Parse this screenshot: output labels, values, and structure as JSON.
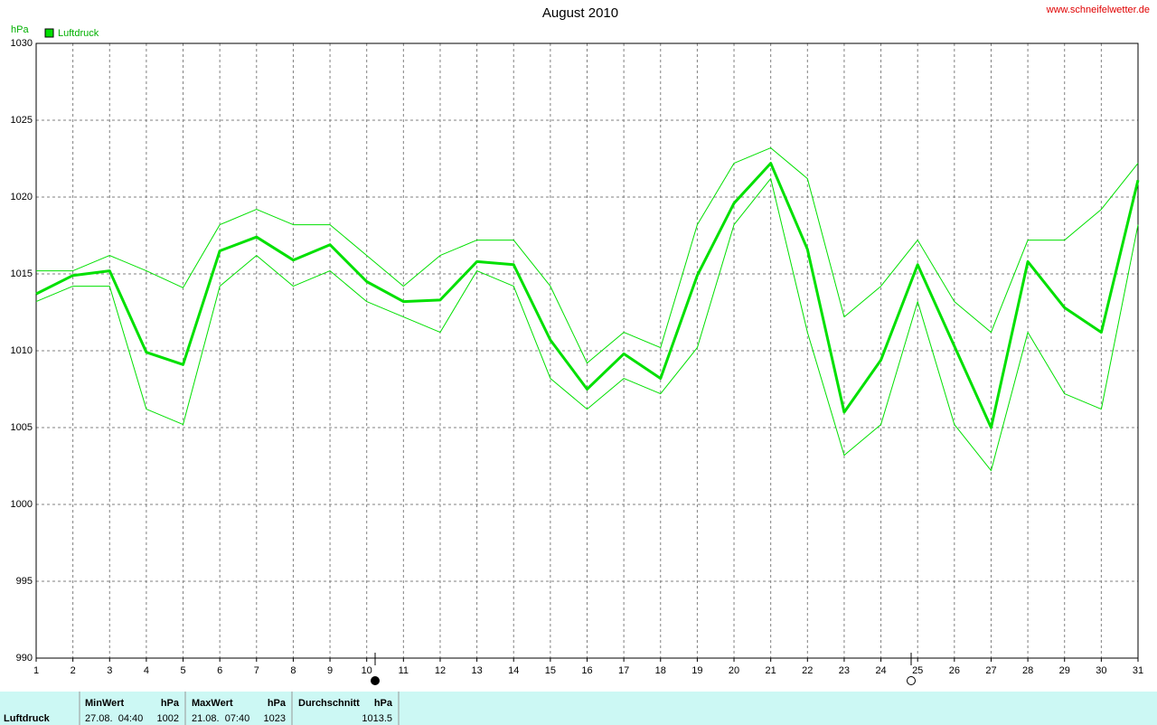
{
  "chart_data": {
    "type": "line",
    "title": "August 2010",
    "source": "www.schneifelwetter.de",
    "y_label": "hPa",
    "x": [
      1,
      2,
      3,
      4,
      5,
      6,
      7,
      8,
      9,
      10,
      11,
      12,
      13,
      14,
      15,
      16,
      17,
      18,
      19,
      20,
      21,
      22,
      23,
      24,
      25,
      26,
      27,
      28,
      29,
      30,
      31
    ],
    "xlim": [
      1,
      31
    ],
    "xticks": [
      1,
      2,
      3,
      4,
      5,
      6,
      7,
      8,
      9,
      10,
      11,
      12,
      13,
      14,
      15,
      16,
      17,
      18,
      19,
      20,
      21,
      22,
      23,
      24,
      25,
      26,
      27,
      28,
      29,
      30,
      31
    ],
    "ylim": [
      990,
      1030
    ],
    "yticks": [
      990,
      995,
      1000,
      1005,
      1010,
      1015,
      1020,
      1025,
      1030
    ],
    "grid": true,
    "series": [
      {
        "name": "Luftdruck",
        "color": "#00e000",
        "values": [
          1013.7,
          1014.9,
          1015.2,
          1009.9,
          1009.1,
          1016.5,
          1017.4,
          1015.9,
          1016.9,
          1014.5,
          1013.2,
          1013.3,
          1015.8,
          1015.6,
          1010.7,
          1007.5,
          1009.8,
          1008.2,
          1014.9,
          1019.6,
          1022.2,
          1016.6,
          1006.0,
          1009.4,
          1015.6,
          1010.3,
          1005.0,
          1015.8,
          1012.8,
          1011.2,
          1021.1
        ]
      },
      {
        "color": "#00e000",
        "values": [
          1015.2,
          1015.2,
          1016.2,
          1015.2,
          1014.1,
          1018.2,
          1019.2,
          1018.2,
          1018.2,
          1016.2,
          1014.2,
          1016.2,
          1017.2,
          1017.2,
          1014.2,
          1009.2,
          1011.2,
          1010.2,
          1018.2,
          1022.2,
          1023.2,
          1021.2,
          1012.2,
          1014.2,
          1017.2,
          1013.2,
          1011.2,
          1017.2,
          1017.2,
          1019.2,
          1022.2
        ]
      },
      {
        "color": "#00e000",
        "values": [
          1013.2,
          1014.2,
          1014.2,
          1006.2,
          1005.2,
          1014.2,
          1016.2,
          1014.2,
          1015.2,
          1013.2,
          1012.2,
          1011.2,
          1015.2,
          1014.2,
          1008.2,
          1006.2,
          1008.2,
          1007.2,
          1010.2,
          1018.2,
          1021.2,
          1011.2,
          1003.2,
          1005.2,
          1013.2,
          1005.2,
          1002.2,
          1011.2,
          1007.2,
          1006.2,
          1018.2
        ]
      }
    ]
  },
  "table": {
    "label": "Luftdruck",
    "columns": [
      {
        "header": "MinWert",
        "unit": "hPa",
        "time": "27.08.  04:40",
        "value": "1002"
      },
      {
        "header": "MaxWert",
        "unit": "hPa",
        "time": "21.08.  07:40",
        "value": "1023"
      },
      {
        "header": "Durchschnitt",
        "unit": "hPa",
        "value": "1013.5"
      }
    ]
  }
}
